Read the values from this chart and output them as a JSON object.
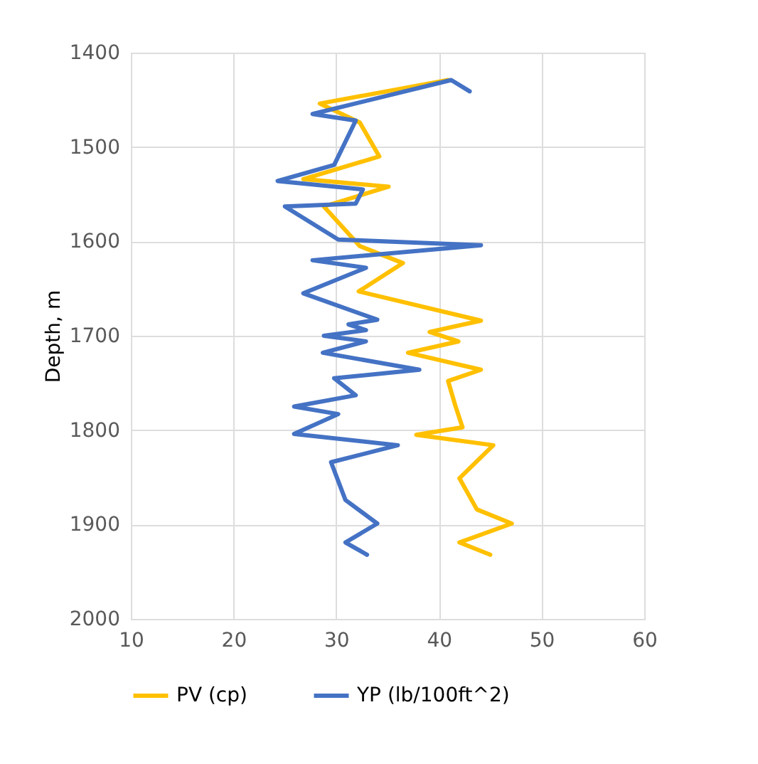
{
  "chart_data": {
    "type": "line",
    "ylabel": "Depth, m",
    "xlim": [
      10,
      60
    ],
    "xticks": [
      10,
      20,
      30,
      40,
      50,
      60
    ],
    "ylim": [
      2000,
      1400
    ],
    "yticks": [
      1400,
      1500,
      1600,
      1700,
      1800,
      1900,
      2000
    ],
    "grid": true,
    "legend": "bottom",
    "line_style": "solid",
    "marker": "none",
    "series": [
      {
        "name": "PV (cp)",
        "color": "#ffc000",
        "x": [
          40.9,
          28.4,
          32.3,
          34.2,
          26.8,
          35.1,
          28.8,
          32.3,
          36.5,
          32.2,
          44.1,
          39.1,
          41.9,
          37,
          44.1,
          40.9,
          41.6,
          42.3,
          37.8,
          45.3,
          42,
          43.7,
          47.1,
          42,
          45
        ],
        "values": [
          1429,
          1454,
          1474,
          1510,
          1534,
          1542,
          1563,
          1605,
          1623,
          1653,
          1684,
          1696,
          1706,
          1718,
          1736,
          1748,
          1774,
          1797,
          1805,
          1816,
          1851,
          1884,
          1899,
          1919,
          1932
        ]
      },
      {
        "name": "YP (lb/100ft^2)",
        "color": "#4472c4",
        "x": [
          43,
          41.2,
          27.7,
          31.9,
          29.8,
          24.3,
          32.6,
          31.9,
          25,
          30.2,
          44.1,
          27.7,
          32.9,
          26.8,
          34,
          31.2,
          32.9,
          28.8,
          32.9,
          28.7,
          38.1,
          29.8,
          31.9,
          25.9,
          30.2,
          25.9,
          36,
          29.5,
          30.9,
          34,
          30.9,
          33
        ],
        "values": [
          1441,
          1429,
          1465,
          1472,
          1519,
          1536,
          1545,
          1560,
          1563,
          1598,
          1604,
          1620,
          1628,
          1655,
          1683,
          1688,
          1694,
          1700,
          1706,
          1718,
          1736,
          1745,
          1763,
          1775,
          1783,
          1804,
          1816,
          1834,
          1874,
          1899,
          1919,
          1932
        ]
      }
    ]
  }
}
